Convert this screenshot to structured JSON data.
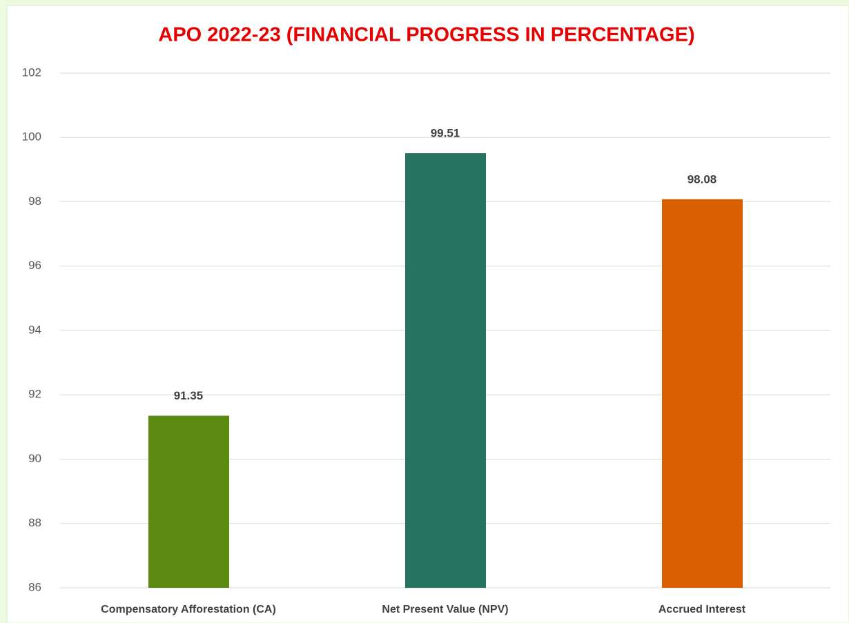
{
  "chart_data": {
    "type": "bar",
    "title": "APO 2022-23 (FINANCIAL PROGRESS IN PERCENTAGE)",
    "categories": [
      "Compensatory Afforestation (CA)",
      "Net Present Value (NPV)",
      "Accrued Interest"
    ],
    "values": [
      91.35,
      99.51,
      98.08
    ],
    "colors": [
      "#5a8a12",
      "#247460",
      "#d95f00"
    ],
    "ylim": [
      86,
      102
    ],
    "yticks": [
      86,
      88,
      90,
      92,
      94,
      96,
      98,
      100,
      102
    ],
    "grid": true
  }
}
